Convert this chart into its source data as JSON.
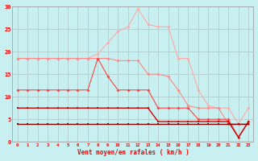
{
  "x": [
    0,
    1,
    2,
    3,
    4,
    5,
    6,
    7,
    8,
    9,
    10,
    11,
    12,
    13,
    14,
    15,
    16,
    17,
    18,
    19,
    20,
    21,
    22,
    23
  ],
  "line1": [
    18.5,
    18.5,
    18.5,
    18.5,
    18.5,
    18.5,
    18.5,
    18.5,
    19.5,
    22.0,
    24.5,
    25.5,
    29.5,
    26.0,
    25.5,
    25.5,
    18.5,
    18.5,
    11.5,
    8.0,
    7.5,
    7.5,
    4.0,
    7.5
  ],
  "line2": [
    18.5,
    18.5,
    18.5,
    18.5,
    18.5,
    18.5,
    18.5,
    18.5,
    18.5,
    18.5,
    18.0,
    18.0,
    18.0,
    15.0,
    15.0,
    14.5,
    11.5,
    8.0,
    7.5,
    7.5,
    7.5,
    4.0,
    4.0,
    4.0
  ],
  "line3": [
    11.5,
    11.5,
    11.5,
    11.5,
    11.5,
    11.5,
    11.5,
    11.5,
    18.5,
    14.5,
    11.5,
    11.5,
    11.5,
    11.5,
    7.5,
    7.5,
    7.5,
    7.5,
    5.0,
    5.0,
    5.0,
    5.0,
    1.0,
    4.5
  ],
  "line4": [
    7.5,
    7.5,
    7.5,
    7.5,
    7.5,
    7.5,
    7.5,
    7.5,
    7.5,
    7.5,
    7.5,
    7.5,
    7.5,
    7.5,
    4.5,
    4.5,
    4.5,
    4.5,
    4.5,
    4.5,
    4.5,
    4.5,
    1.0,
    4.5
  ],
  "line5": [
    4.0,
    4.0,
    4.0,
    4.0,
    4.0,
    4.0,
    4.0,
    4.0,
    4.0,
    4.0,
    4.0,
    4.0,
    4.0,
    4.0,
    4.0,
    4.0,
    4.0,
    4.0,
    4.0,
    4.0,
    4.0,
    4.0,
    4.0,
    4.0
  ],
  "bg_color": "#c8f0f0",
  "grid_color": "#b0c8c8",
  "line1_color": "#ffaaaa",
  "line2_color": "#ff8888",
  "line3_color": "#ff4444",
  "line4_color": "#cc0000",
  "line5_color": "#880000",
  "xlabel": "Vent moyen/en rafales ( km/h )",
  "ylim": [
    0,
    30
  ],
  "xlim": [
    -0.5,
    23.5
  ],
  "yticks": [
    0,
    5,
    10,
    15,
    20,
    25,
    30
  ],
  "xticks": [
    0,
    1,
    2,
    3,
    4,
    5,
    6,
    7,
    8,
    9,
    10,
    11,
    12,
    13,
    14,
    15,
    16,
    17,
    18,
    19,
    20,
    21,
    22,
    23
  ]
}
